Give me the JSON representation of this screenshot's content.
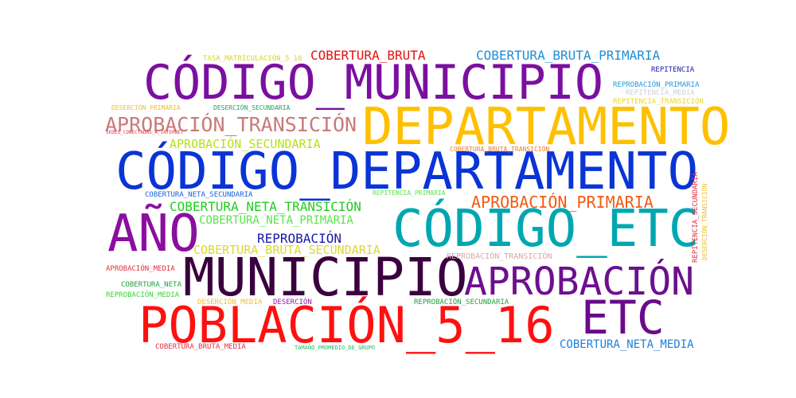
{
  "words": [
    {
      "text": "CÓDIGO_MUNICIPIO",
      "color": "#7b0fa0"
    },
    {
      "text": "DEPARTAMENTO",
      "color": "#ffc000"
    },
    {
      "text": "CÓDIGO_DEPARTAMENTO",
      "color": "#0a34d6"
    },
    {
      "text": "AÑO",
      "color": "#8a0f9e"
    },
    {
      "text": "CÓDIGO_ETC",
      "color": "#00a7b0"
    },
    {
      "text": "MUNICIPIO",
      "color": "#3a003f"
    },
    {
      "text": "APROBACIÓN",
      "color": "#6d0f8e"
    },
    {
      "text": "POBLACIÓN_5_16",
      "color": "#ff1010"
    },
    {
      "text": "ETC",
      "color": "#6a0a8a"
    },
    {
      "text": "APROBACIÓN_TRANSICIÓN",
      "color": "#c97a7a"
    },
    {
      "text": "COBERTURA_BRUTA",
      "color": "#e81010"
    },
    {
      "text": "COBERTURA_BRUTA_PRIMARIA",
      "color": "#1f8fd6"
    },
    {
      "text": "APROBACIÓN_SECUNDARIA",
      "color": "#b6e01a"
    },
    {
      "text": "APROBACIÓN_PRIMARIA",
      "color": "#f25a12"
    },
    {
      "text": "COBERTURA_NETA_TRANSICIÓN",
      "color": "#22cc22"
    },
    {
      "text": "COBERTURA_NETA_PRIMARIA",
      "color": "#5ae34a"
    },
    {
      "text": "REPROBACIÓN",
      "color": "#1a1aa8"
    },
    {
      "text": "COBERTURA_BRUTA_SECUNDARIA",
      "color": "#dada30"
    },
    {
      "text": "COBERTURA_NETA_MEDIA",
      "color": "#1f7ed6"
    },
    {
      "text": "TASA_MATRICULACIÓN_5_16",
      "color": "#e0d030"
    },
    {
      "text": "REPITENCIA",
      "color": "#1a1aa8"
    },
    {
      "text": "REPROBACIÓN_PRIMARIA",
      "color": "#2a9ad6"
    },
    {
      "text": "REPITENCIA_MEDIA",
      "color": "#cfcfd8"
    },
    {
      "text": "REPITENCIA_TRANSICIÓN",
      "color": "#e8d830"
    },
    {
      "text": "DESERCIÓN_PRIMARIA",
      "color": "#f0c030"
    },
    {
      "text": "DESERCIÓN_SECUNDARIA",
      "color": "#20a060"
    },
    {
      "text": "SEDES_CONECTADAS_A_INTERNET",
      "color": "#e03040"
    },
    {
      "text": "COBERTURA_BRUTA_TRANSICIÓN",
      "color": "#f07a30"
    },
    {
      "text": "COBERTURA_NETA_SECUNDARIA",
      "color": "#1a60d6"
    },
    {
      "text": "REPITENCIA_PRIMARIA",
      "color": "#5ae34a"
    },
    {
      "text": "REPITENCIA_SECUNDARIA",
      "color": "#e03040"
    },
    {
      "text": "DESERCIÓN_TRANSICIÓN",
      "color": "#f0c030"
    },
    {
      "text": "REPROBACIÓN_TRANSICIÓN",
      "color": "#d8a8a8"
    },
    {
      "text": "APROBACIÓN_MEDIA",
      "color": "#e03040"
    },
    {
      "text": "COBERTURA_NETA",
      "color": "#20a040"
    },
    {
      "text": "REPROBACIÓN_MEDIA",
      "color": "#40d040"
    },
    {
      "text": "DESERCIÓN_MEDIA",
      "color": "#f0c030"
    },
    {
      "text": "DESERCIÓN",
      "color": "#9a1aa8"
    },
    {
      "text": "REPROBACIÓN_SECUNDARIA",
      "color": "#20a040"
    },
    {
      "text": "COBERTURA_BRUTA_MEDIA",
      "color": "#e03040"
    },
    {
      "text": "TAMAÑO_PROMEDIO_DE_GRUPO",
      "color": "#20c060"
    }
  ]
}
